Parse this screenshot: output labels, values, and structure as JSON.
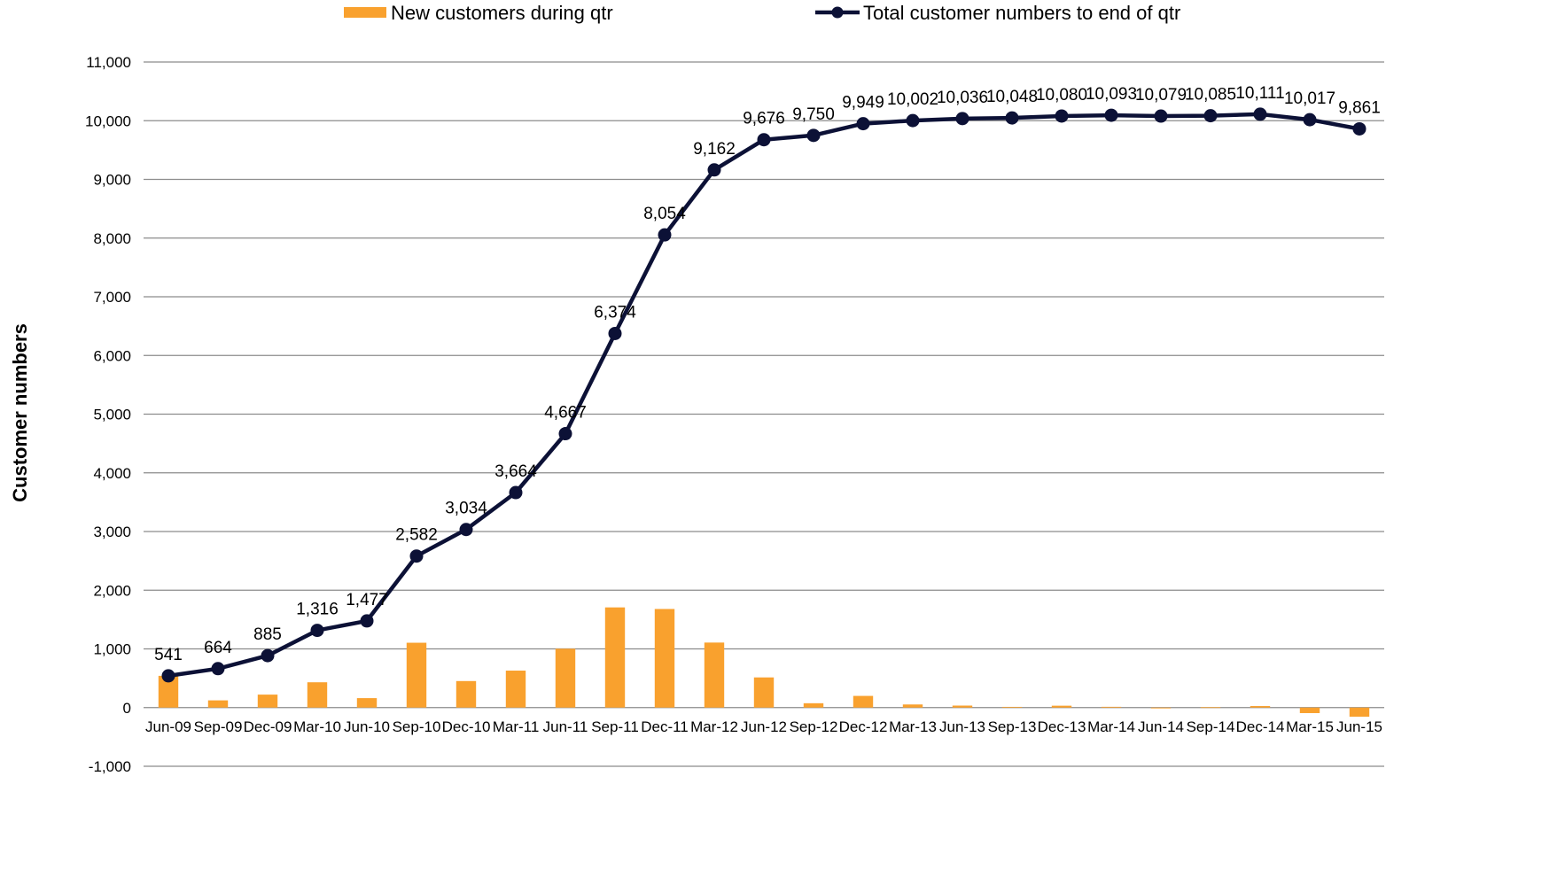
{
  "chart_data": {
    "type": "bar",
    "categories": [
      "Jun-09",
      "Sep-09",
      "Dec-09",
      "Mar-10",
      "Jun-10",
      "Sep-10",
      "Dec-10",
      "Mar-11",
      "Jun-11",
      "Sep-11",
      "Dec-11",
      "Mar-12",
      "Jun-12",
      "Sep-12",
      "Dec-12",
      "Mar-13",
      "Jun-13",
      "Sep-13",
      "Dec-13",
      "Mar-14",
      "Jun-14",
      "Sep-14",
      "Dec-14",
      "Mar-15",
      "Jun-15"
    ],
    "ylabel": "Customer numbers",
    "ylim": [
      -1000,
      11000
    ],
    "yticks": [
      -1000,
      0,
      1000,
      2000,
      3000,
      4000,
      5000,
      6000,
      7000,
      8000,
      9000,
      10000,
      11000
    ],
    "ytick_labels": [
      "-1,000",
      "0",
      "1,000",
      "2,000",
      "3,000",
      "4,000",
      "5,000",
      "6,000",
      "7,000",
      "8,000",
      "9,000",
      "10,000",
      "11,000"
    ],
    "grid": true,
    "legend_position": "top",
    "series": [
      {
        "name": "New customers during qtr",
        "type": "bar",
        "color": "#F9A12E",
        "values": [
          541,
          123,
          221,
          431,
          161,
          1105,
          452,
          630,
          1003,
          1707,
          1680,
          1108,
          514,
          74,
          199,
          53,
          34,
          12,
          32,
          13,
          -14,
          6,
          26,
          -94,
          -156
        ]
      },
      {
        "name": "Total customer numbers to end of qtr",
        "type": "line",
        "color": "#0C1136",
        "values": [
          541,
          664,
          885,
          1316,
          1477,
          2582,
          3034,
          3664,
          4667,
          6374,
          8054,
          9162,
          9676,
          9750,
          9949,
          10002,
          10036,
          10048,
          10080,
          10093,
          10079,
          10085,
          10111,
          10017,
          9861
        ],
        "labels": [
          "541",
          "664",
          "885",
          "1,316",
          "1,477",
          "2,582",
          "3,034",
          "3,664",
          "4,667",
          "6,374",
          "8,054",
          "9,162",
          "9,676",
          "9,750",
          "9,949",
          "10,002",
          "10,036",
          "10,048",
          "10,080",
          "10,093",
          "10,079",
          "10,085",
          "10,111",
          "10,017",
          "9,861"
        ]
      }
    ]
  }
}
